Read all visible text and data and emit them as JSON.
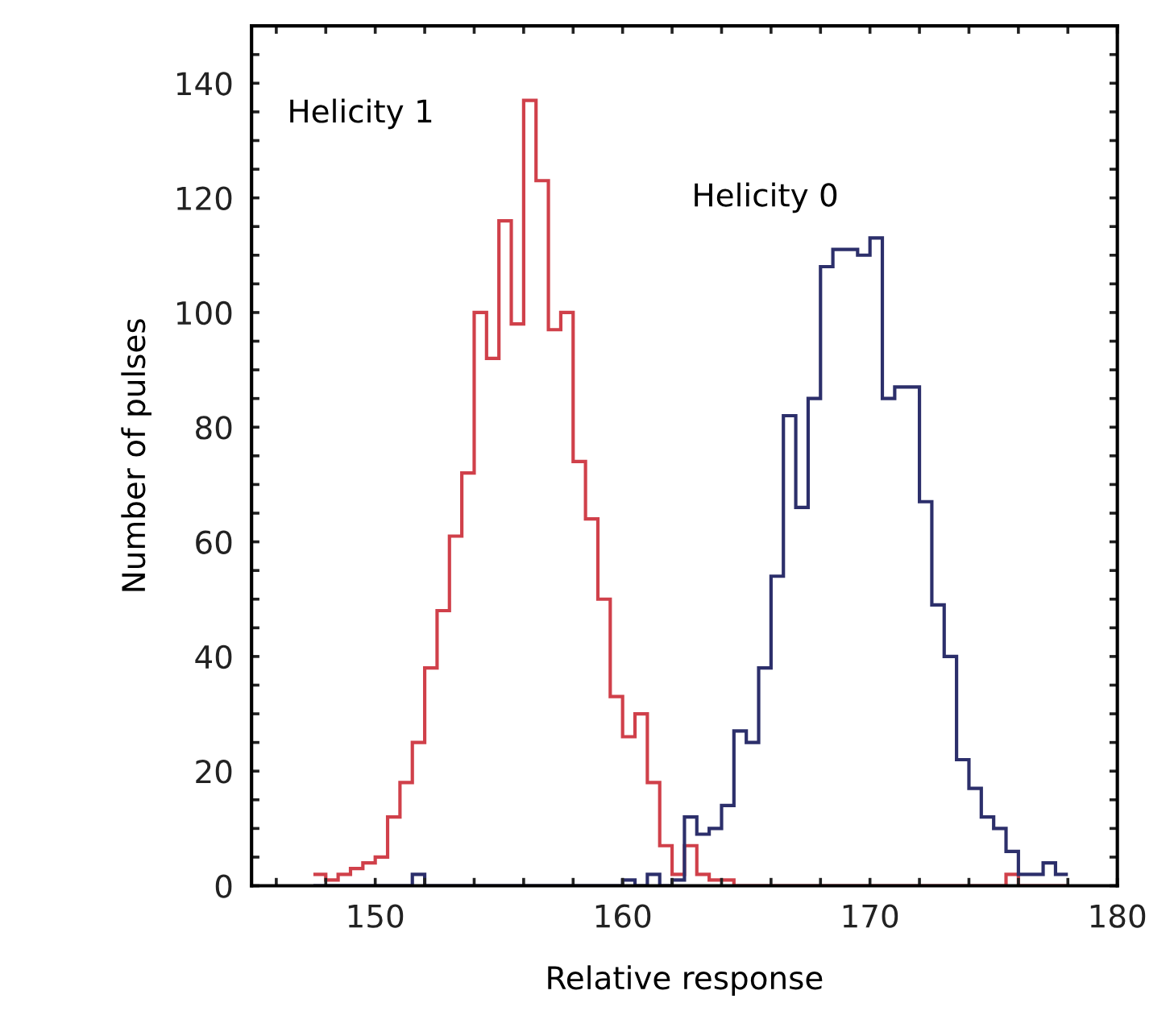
{
  "chart_data": {
    "type": "histogram",
    "xlabel": "Relative response",
    "ylabel": "Number of pulses",
    "bins": [
      147.5,
      148,
      148.5,
      149,
      149.5,
      150,
      150.5,
      151,
      151.5,
      152,
      152.5,
      153,
      153.5,
      154,
      154.5,
      155,
      155.5,
      156,
      156.5,
      157,
      157.5,
      158,
      158.5,
      159,
      159.5,
      160,
      160.5,
      161,
      161.5,
      162,
      162.5,
      163,
      163.5,
      164,
      164.5,
      165,
      165.5,
      166,
      166.5,
      167,
      167.5,
      168,
      168.5,
      169,
      169.5,
      170,
      170.5,
      171,
      171.5,
      172,
      172.5,
      173,
      173.5,
      174,
      174.5,
      175,
      175.5,
      176,
      176.5,
      177,
      177.5,
      178
    ],
    "series": [
      {
        "name": "Helicity 1",
        "color": "#d0404a",
        "values": [
          2,
          1,
          2,
          3,
          4,
          5,
          12,
          18,
          25,
          38,
          48,
          61,
          72,
          100,
          92,
          116,
          98,
          137,
          123,
          97,
          100,
          74,
          64,
          50,
          33,
          26,
          30,
          18,
          7,
          2,
          7,
          2,
          1,
          1,
          0,
          0,
          0,
          0,
          0,
          0,
          0,
          0,
          0,
          0,
          0,
          0,
          0,
          0,
          0,
          0,
          0,
          0,
          0,
          0,
          0,
          0,
          2,
          0,
          0,
          0,
          0
        ]
      },
      {
        "name": "Helicity 0",
        "color": "#2c2f6b",
        "values": [
          0,
          0,
          0,
          0,
          0,
          0,
          0,
          0,
          2,
          0,
          0,
          0,
          0,
          0,
          0,
          0,
          0,
          0,
          0,
          0,
          0,
          0,
          0,
          0,
          0,
          1,
          0,
          2,
          0,
          1,
          12,
          9,
          10,
          14,
          27,
          25,
          38,
          54,
          82,
          66,
          85,
          108,
          111,
          111,
          110,
          113,
          85,
          87,
          87,
          67,
          49,
          40,
          22,
          17,
          12,
          10,
          6,
          2,
          2,
          4,
          2
        ]
      }
    ],
    "xlim": [
      145,
      180
    ],
    "ylim": [
      0,
      150
    ],
    "xticks": [
      {
        "value": 146,
        "label": null
      },
      {
        "value": 148,
        "label": null
      },
      150,
      {
        "value": 152,
        "label": null
      },
      {
        "value": 154,
        "label": null
      },
      {
        "value": 156,
        "label": null
      },
      {
        "value": 158,
        "label": null
      },
      160,
      {
        "value": 162,
        "label": null
      },
      {
        "value": 164,
        "label": null
      },
      {
        "value": 166,
        "label": null
      },
      {
        "value": 168,
        "label": null
      },
      170,
      {
        "value": 172,
        "label": null
      },
      {
        "value": 174,
        "label": null
      },
      {
        "value": 176,
        "label": null
      },
      {
        "value": 178,
        "label": null
      },
      180
    ],
    "yticks": [
      0,
      {
        "value": 5,
        "label": null
      },
      {
        "value": 10,
        "label": null
      },
      {
        "value": 15,
        "label": null
      },
      20,
      {
        "value": 25,
        "label": null
      },
      {
        "value": 30,
        "label": null
      },
      {
        "value": 35,
        "label": null
      },
      40,
      {
        "value": 45,
        "label": null
      },
      {
        "value": 50,
        "label": null
      },
      {
        "value": 55,
        "label": null
      },
      60,
      {
        "value": 65,
        "label": null
      },
      {
        "value": 70,
        "label": null
      },
      {
        "value": 75,
        "label": null
      },
      80,
      {
        "value": 85,
        "label": null
      },
      {
        "value": 90,
        "label": null
      },
      {
        "value": 95,
        "label": null
      },
      100,
      {
        "value": 105,
        "label": null
      },
      {
        "value": 110,
        "label": null
      },
      {
        "value": 115,
        "label": null
      },
      120,
      {
        "value": 125,
        "label": null
      },
      {
        "value": 130,
        "label": null
      },
      {
        "value": 135,
        "label": null
      },
      140,
      {
        "value": 145,
        "label": null
      }
    ],
    "grid": false
  }
}
